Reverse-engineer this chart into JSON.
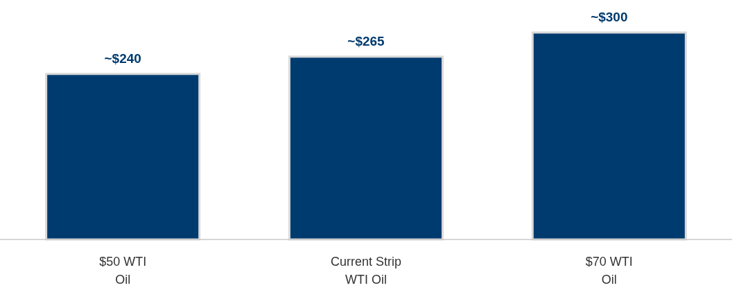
{
  "chart_data": {
    "type": "bar",
    "categories": [
      "$50 WTI\nOil",
      "Current Strip\nWTI Oil",
      "$70 WTI\nOil"
    ],
    "values": [
      240,
      265,
      300
    ],
    "value_labels": [
      "~$240",
      "~$265",
      "~$300"
    ],
    "color": "#003b6f"
  }
}
